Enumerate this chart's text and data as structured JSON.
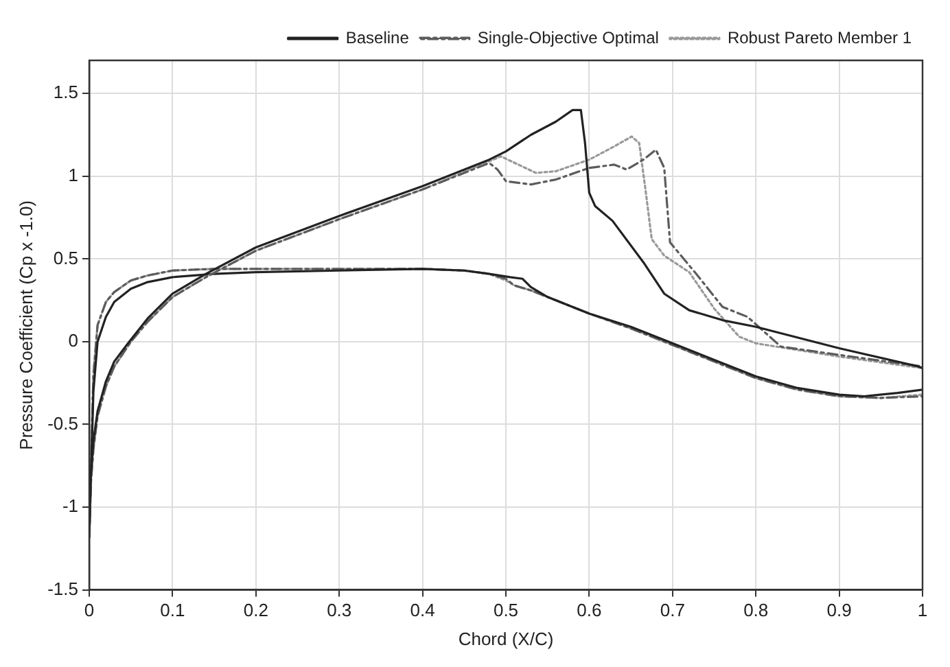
{
  "chart_data": {
    "type": "line",
    "xlabel": "Chord (X/C)",
    "ylabel": "Pressure Coefficient (Cp x -1.0)",
    "xlim": [
      0,
      1
    ],
    "ylim": [
      -1.5,
      1.7
    ],
    "xticks": [
      0,
      0.1,
      0.2,
      0.3,
      0.4,
      0.5,
      0.6,
      0.7,
      0.8,
      0.9,
      1
    ],
    "yticks": [
      -1.5,
      -1,
      -0.5,
      0,
      0.5,
      1,
      1.5
    ],
    "grid": true,
    "legend": "top right",
    "marker": "none",
    "series": [
      {
        "name": "Baseline",
        "color": "#222222",
        "line_style": "solid",
        "x": [
          0,
          0.002,
          0.005,
          0.01,
          0.02,
          0.03,
          0.048,
          0.07,
          0.1,
          0.14,
          0.2,
          0.3,
          0.4,
          0.48,
          0.5,
          0.53,
          0.56,
          0.58,
          0.59,
          0.595,
          0.6,
          0.607,
          0.628,
          0.665,
          0.69,
          0.72,
          0.76,
          0.8,
          0.9,
          0.995,
          1
        ],
        "values": [
          -1.18,
          -0.8,
          -0.6,
          -0.42,
          -0.24,
          -0.12,
          0,
          0.14,
          0.29,
          0.41,
          0.57,
          0.76,
          0.94,
          1.1,
          1.15,
          1.25,
          1.33,
          1.4,
          1.4,
          1.2,
          0.9,
          0.82,
          0.73,
          0.48,
          0.29,
          0.19,
          0.13,
          0.09,
          -0.04,
          -0.15,
          -0.16
        ]
      },
      {
        "name": "Single-Objective Optimal",
        "color": "#5c5c5c",
        "line_style": "dashed",
        "x": [
          0,
          0.002,
          0.005,
          0.01,
          0.02,
          0.03,
          0.05,
          0.07,
          0.1,
          0.14,
          0.2,
          0.3,
          0.4,
          0.48,
          0.49,
          0.5,
          0.53,
          0.56,
          0.6,
          0.63,
          0.645,
          0.665,
          0.68,
          0.69,
          0.697,
          0.73,
          0.76,
          0.79,
          0.83,
          0.9,
          1
        ],
        "values": [
          -1.18,
          -0.85,
          -0.65,
          -0.45,
          -0.27,
          -0.15,
          0,
          0.12,
          0.27,
          0.39,
          0.55,
          0.74,
          0.92,
          1.08,
          1.04,
          0.97,
          0.95,
          0.98,
          1.05,
          1.07,
          1.04,
          1.1,
          1.16,
          1.05,
          0.6,
          0.4,
          0.21,
          0.15,
          -0.03,
          -0.08,
          -0.15
        ]
      },
      {
        "name": "Robust Pareto Member 1",
        "color": "#999999",
        "line_style": "dotted",
        "x": [
          0,
          0.002,
          0.005,
          0.01,
          0.02,
          0.03,
          0.05,
          0.07,
          0.1,
          0.14,
          0.2,
          0.3,
          0.4,
          0.48,
          0.494,
          0.536,
          0.56,
          0.6,
          0.63,
          0.651,
          0.66,
          0.668,
          0.675,
          0.69,
          0.72,
          0.75,
          0.78,
          0.8,
          0.85,
          0.9,
          1
        ],
        "values": [
          -1.18,
          -0.85,
          -0.65,
          -0.45,
          -0.27,
          -0.15,
          0,
          0.12,
          0.27,
          0.39,
          0.55,
          0.74,
          0.92,
          1.09,
          1.12,
          1.02,
          1.03,
          1.1,
          1.18,
          1.24,
          1.2,
          0.9,
          0.62,
          0.52,
          0.42,
          0.2,
          0.03,
          -0.01,
          -0.05,
          -0.09,
          -0.16
        ]
      },
      {
        "color": "#222222",
        "line_style": "solid",
        "x": [
          0,
          0.005,
          0.01,
          0.02,
          0.03,
          0.05,
          0.07,
          0.1,
          0.15,
          0.2,
          0.3,
          0.4,
          0.45,
          0.48,
          0.505,
          0.52,
          0.53,
          0.55,
          0.6,
          0.65,
          0.7,
          0.75,
          0.8,
          0.85,
          0.9,
          0.93,
          0.97,
          1
        ],
        "values": [
          -1.18,
          -0.3,
          0,
          0.15,
          0.24,
          0.32,
          0.36,
          0.39,
          0.41,
          0.42,
          0.43,
          0.44,
          0.43,
          0.41,
          0.39,
          0.38,
          0.33,
          0.27,
          0.17,
          0.09,
          -0.01,
          -0.11,
          -0.21,
          -0.28,
          -0.32,
          -0.33,
          -0.31,
          -0.29
        ]
      },
      {
        "color": "#5c5c5c",
        "line_style": "dashed",
        "x": [
          0,
          0.005,
          0.01,
          0.02,
          0.03,
          0.05,
          0.07,
          0.1,
          0.15,
          0.2,
          0.3,
          0.4,
          0.45,
          0.48,
          0.5,
          0.51,
          0.53,
          0.55,
          0.6,
          0.65,
          0.7,
          0.75,
          0.8,
          0.85,
          0.9,
          0.95,
          1
        ],
        "values": [
          -1.18,
          -0.2,
          0.1,
          0.24,
          0.3,
          0.37,
          0.4,
          0.43,
          0.44,
          0.44,
          0.44,
          0.44,
          0.43,
          0.41,
          0.38,
          0.34,
          0.31,
          0.27,
          0.17,
          0.08,
          -0.02,
          -0.12,
          -0.22,
          -0.29,
          -0.33,
          -0.34,
          -0.33
        ]
      },
      {
        "color": "#999999",
        "line_style": "dotted",
        "x": [
          0,
          0.005,
          0.01,
          0.02,
          0.03,
          0.05,
          0.07,
          0.1,
          0.15,
          0.2,
          0.3,
          0.4,
          0.45,
          0.48,
          0.5,
          0.51,
          0.53,
          0.55,
          0.6,
          0.65,
          0.7,
          0.75,
          0.8,
          0.85,
          0.9,
          0.95,
          1
        ],
        "values": [
          -1.18,
          -0.2,
          0.1,
          0.24,
          0.3,
          0.37,
          0.4,
          0.43,
          0.44,
          0.44,
          0.44,
          0.44,
          0.43,
          0.41,
          0.37,
          0.34,
          0.31,
          0.27,
          0.17,
          0.08,
          -0.02,
          -0.12,
          -0.22,
          -0.29,
          -0.33,
          -0.34,
          -0.32
        ]
      }
    ]
  }
}
